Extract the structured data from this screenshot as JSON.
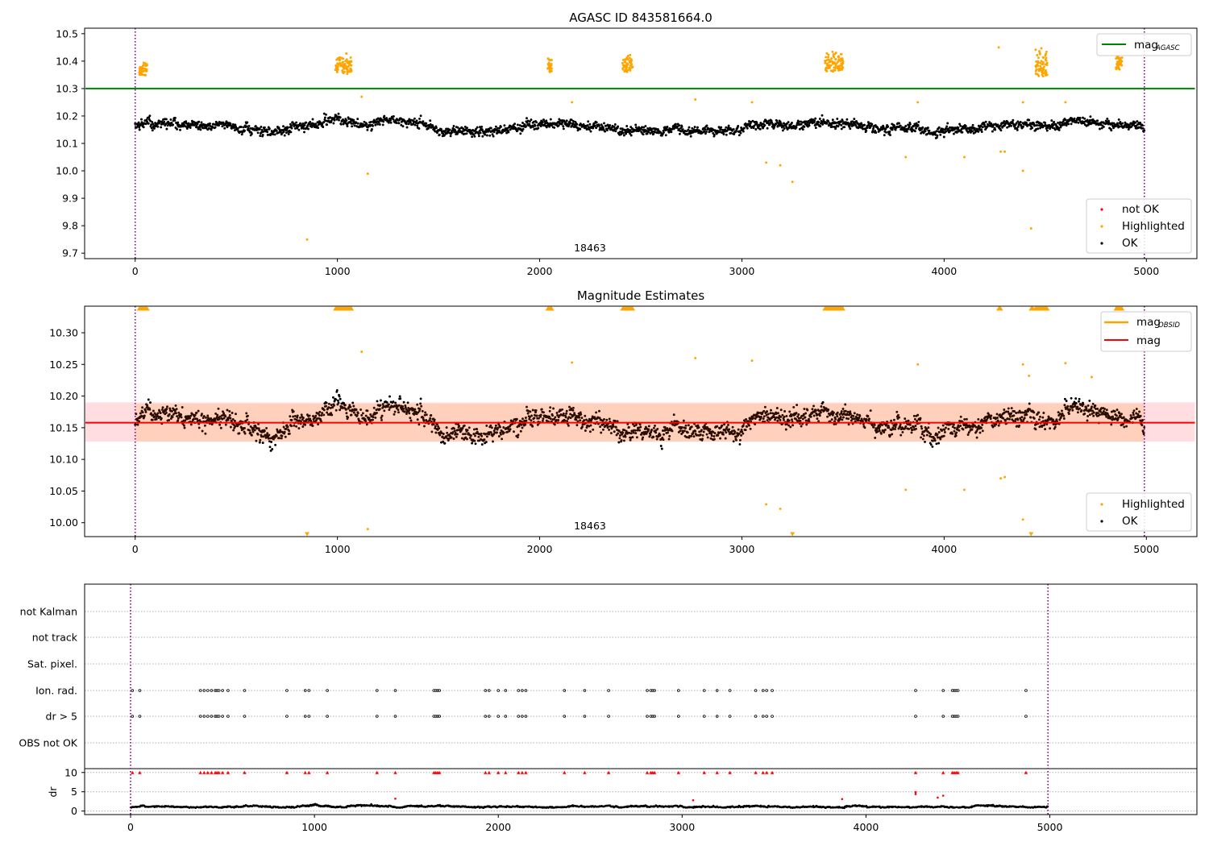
{
  "chart_data": [
    {
      "type": "scatter",
      "title": "AGASC ID 843581664.0",
      "xlim": [
        -250,
        5250
      ],
      "ylim": [
        9.68,
        10.52
      ],
      "xticks": [
        "0",
        "1000",
        "2000",
        "3000",
        "4000",
        "5000"
      ],
      "yticks": [
        "9.7",
        "9.8",
        "9.9",
        "10.0",
        "10.1",
        "10.2",
        "10.3",
        "10.4",
        "10.5"
      ],
      "obsid_label": "18463",
      "obsid_boundaries": [
        0,
        4990
      ],
      "mag_agasc": 10.3,
      "legend_lines": {
        "main": "mag",
        "sub": "AGASC"
      },
      "legend_points": [
        "not OK",
        "Highlighted",
        "OK"
      ],
      "ok_baseline": 10.16,
      "ok_spread": 0.035,
      "highlighted_clusters": [
        {
          "x": [
            20,
            60
          ],
          "y": [
            10.34,
            10.4
          ]
        },
        {
          "x": [
            990,
            1070
          ],
          "y": [
            10.34,
            10.44
          ]
        },
        {
          "x": [
            2040,
            2060
          ],
          "y": [
            10.35,
            10.43
          ]
        },
        {
          "x": [
            2410,
            2460
          ],
          "y": [
            10.35,
            10.43
          ]
        },
        {
          "x": [
            3410,
            3500
          ],
          "y": [
            10.35,
            10.44
          ]
        },
        {
          "x": [
            4450,
            4510
          ],
          "y": [
            10.33,
            10.45
          ]
        },
        {
          "x": [
            4850,
            4880
          ],
          "y": [
            10.36,
            10.43
          ]
        }
      ],
      "highlighted_outliers": [
        [
          850,
          9.75
        ],
        [
          1120,
          10.27
        ],
        [
          1150,
          9.99
        ],
        [
          2160,
          10.25
        ],
        [
          2770,
          10.26
        ],
        [
          3050,
          10.25
        ],
        [
          3120,
          10.03
        ],
        [
          3190,
          10.02
        ],
        [
          3250,
          9.96
        ],
        [
          3810,
          10.05
        ],
        [
          3870,
          10.25
        ],
        [
          4100,
          10.05
        ],
        [
          4270,
          10.45
        ],
        [
          4280,
          10.07
        ],
        [
          4300,
          10.07
        ],
        [
          4390,
          10.25
        ],
        [
          4390,
          10.0
        ],
        [
          4430,
          9.79
        ],
        [
          4600,
          10.25
        ]
      ]
    },
    {
      "type": "scatter",
      "title": "Magnitude Estimates",
      "xlim": [
        -250,
        5250
      ],
      "ylim": [
        9.978,
        10.342
      ],
      "xticks": [
        "0",
        "1000",
        "2000",
        "3000",
        "4000",
        "5000"
      ],
      "yticks": [
        "10.00",
        "10.05",
        "10.10",
        "10.15",
        "10.20",
        "10.25",
        "10.30"
      ],
      "obsid_label": "18463",
      "mag": 10.158,
      "mag_band_inner": [
        10.128,
        10.188
      ],
      "mag_band_outer": [
        10.128,
        10.19
      ],
      "legend_lines": [
        {
          "main": "mag",
          "sub": "OBSID",
          "color": "#ffa500"
        },
        {
          "main": "mag",
          "sub": "",
          "color": "#ff0000"
        }
      ],
      "legend_points": [
        "Highlighted",
        "OK"
      ],
      "top_clipped_ranges": [
        [
          20,
          60
        ],
        [
          990,
          1070
        ],
        [
          2040,
          2060
        ],
        [
          2410,
          2460
        ],
        [
          3410,
          3500
        ],
        [
          4270,
          4280
        ],
        [
          4430,
          4440
        ],
        [
          4450,
          4510
        ],
        [
          4850,
          4880
        ]
      ],
      "bottom_clipped_x": [
        850,
        3250,
        4430
      ],
      "highlighted_points": [
        [
          1120,
          10.27
        ],
        [
          1150,
          9.99
        ],
        [
          2160,
          10.253
        ],
        [
          2770,
          10.26
        ],
        [
          3050,
          10.256
        ],
        [
          3120,
          10.029
        ],
        [
          3190,
          10.022
        ],
        [
          3810,
          10.052
        ],
        [
          3870,
          10.25
        ],
        [
          4100,
          10.052
        ],
        [
          4280,
          10.07
        ],
        [
          4300,
          10.072
        ],
        [
          4390,
          10.25
        ],
        [
          4390,
          10.005
        ],
        [
          4600,
          10.252
        ],
        [
          4730,
          10.23
        ],
        [
          4420,
          10.232
        ]
      ]
    },
    {
      "type": "scatter",
      "title": "",
      "xlim": [
        -250,
        5800
      ],
      "xticks": [
        "0",
        "1000",
        "2000",
        "3000",
        "4000",
        "5000"
      ],
      "flag_labels": [
        "not Kalman",
        "not track",
        "Sat. pixel.",
        "Ion. rad.",
        "dr > 5",
        "OBS not OK"
      ],
      "dr_ylabel": "dr",
      "dr_ticks": [
        "0",
        "5",
        "10"
      ],
      "dr_ylim": [
        -0.5,
        11
      ],
      "flagged_times": [
        10,
        50,
        380,
        400,
        420,
        440,
        460,
        470,
        480,
        500,
        530,
        620,
        850,
        950,
        970,
        1070,
        1340,
        1440,
        1650,
        1660,
        1670,
        1680,
        1930,
        1950,
        2000,
        2040,
        2110,
        2130,
        2150,
        2360,
        2470,
        2600,
        2810,
        2830,
        2840,
        2850,
        2980,
        3120,
        3190,
        3260,
        3400,
        3440,
        3460,
        3490,
        4270,
        4420,
        4470,
        4480,
        4490,
        4500,
        4870
      ],
      "dr_outliers": [
        [
          1440,
          3.2
        ],
        [
          3060,
          2.8
        ],
        [
          3870,
          3.1
        ],
        [
          4270,
          4.4
        ],
        [
          4270,
          4.9
        ],
        [
          4390,
          3.5
        ],
        [
          4420,
          4.0
        ]
      ]
    }
  ],
  "colors": {
    "ok": "#000000",
    "highlighted": "#ffa500",
    "not_ok": "#ff0000",
    "mag_agasc_line": "#008000",
    "mag_line": "#ff0000",
    "band_outer": "#ffdde1",
    "band_inner": "#ffd0bb",
    "obsid_line": "#800080",
    "grid": "#b0b0b0",
    "dark": "#2a0c00"
  }
}
